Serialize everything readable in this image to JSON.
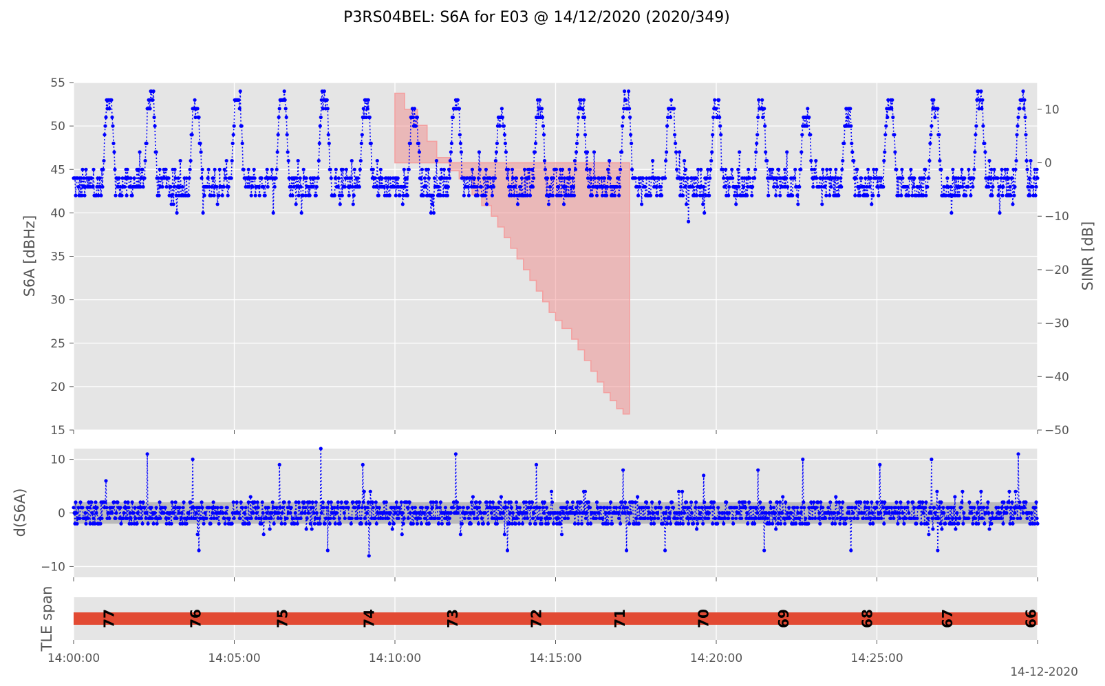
{
  "title": "P3RS04BEL: S6A for E03 @ 14/12/2020 (2020/349)",
  "date_label": "14-12-2020",
  "colors": {
    "signal": "#0000ff",
    "sinr_fill": "#f08080",
    "sinr_edge": "#f4a0a0",
    "tle_bar": "#e24a33",
    "band": "#a8a8a8"
  },
  "chart_data": [
    {
      "type": "scatter",
      "panel": "top",
      "ylabel": "S6A [dBHz]",
      "y2label": "SINR [dB]",
      "ylim": [
        15,
        55
      ],
      "y2lim": [
        -50,
        15
      ],
      "yticks": [
        "15",
        "20",
        "25",
        "30",
        "35",
        "40",
        "45",
        "50",
        "55"
      ],
      "y2ticks": [
        "10",
        "0",
        "−10",
        "−20",
        "−30",
        "−40",
        "−50"
      ],
      "xlim_minutes": [
        0,
        30
      ],
      "series": [
        {
          "kind": "s6a",
          "peak_minutes": [
            1.1,
            2.4,
            3.8,
            5.1,
            6.5,
            7.8,
            9.1,
            10.6,
            11.9,
            13.3,
            14.5,
            15.8,
            17.2,
            18.6,
            20.0,
            21.4,
            22.8,
            24.1,
            25.4,
            26.8,
            28.2,
            29.5
          ],
          "peak_values": [
            54,
            54,
            53,
            54,
            54,
            54,
            53,
            52,
            53,
            52,
            53,
            53,
            54,
            53,
            53,
            53,
            52,
            52,
            53,
            53,
            54,
            54
          ],
          "baseline": 43.2,
          "spread": 1.6
        },
        {
          "kind": "sinr",
          "steps": [
            {
              "start": 10.0,
              "end": 10.3,
              "top": 13,
              "bottom": 0
            },
            {
              "start": 10.3,
              "end": 10.7,
              "top": 10,
              "bottom": 0
            },
            {
              "start": 10.7,
              "end": 11.0,
              "top": 7,
              "bottom": 0
            },
            {
              "start": 11.0,
              "end": 11.3,
              "top": 4,
              "bottom": 0
            },
            {
              "start": 11.3,
              "end": 11.7,
              "top": 1,
              "bottom": 0
            },
            {
              "start": 11.7,
              "end": 12.0,
              "top": 0,
              "bottom": -1.5
            },
            {
              "start": 12.0,
              "end": 12.4,
              "top": 0,
              "bottom": -3
            },
            {
              "start": 12.4,
              "end": 12.7,
              "top": 0,
              "bottom": -6
            },
            {
              "start": 12.7,
              "end": 13.0,
              "top": 0,
              "bottom": -8
            },
            {
              "start": 13.0,
              "end": 13.2,
              "top": 0,
              "bottom": -10
            },
            {
              "start": 13.2,
              "end": 13.4,
              "top": 0,
              "bottom": -12
            },
            {
              "start": 13.4,
              "end": 13.6,
              "top": 0,
              "bottom": -14
            },
            {
              "start": 13.6,
              "end": 13.8,
              "top": 0,
              "bottom": -16
            },
            {
              "start": 13.8,
              "end": 14.0,
              "top": 0,
              "bottom": -18
            },
            {
              "start": 14.0,
              "end": 14.2,
              "top": 0,
              "bottom": -20
            },
            {
              "start": 14.2,
              "end": 14.4,
              "top": 0,
              "bottom": -22
            },
            {
              "start": 14.4,
              "end": 14.6,
              "top": 0,
              "bottom": -24
            },
            {
              "start": 14.6,
              "end": 14.8,
              "top": 0,
              "bottom": -26
            },
            {
              "start": 14.8,
              "end": 15.0,
              "top": 0,
              "bottom": -28
            },
            {
              "start": 15.0,
              "end": 15.2,
              "top": 0,
              "bottom": -29.5
            },
            {
              "start": 15.2,
              "end": 15.5,
              "top": 0,
              "bottom": -31
            },
            {
              "start": 15.5,
              "end": 15.7,
              "top": 0,
              "bottom": -33
            },
            {
              "start": 15.7,
              "end": 15.9,
              "top": 0,
              "bottom": -35
            },
            {
              "start": 15.9,
              "end": 16.1,
              "top": 0,
              "bottom": -37
            },
            {
              "start": 16.1,
              "end": 16.3,
              "top": 0,
              "bottom": -39
            },
            {
              "start": 16.3,
              "end": 16.5,
              "top": 0,
              "bottom": -41
            },
            {
              "start": 16.5,
              "end": 16.7,
              "top": 0,
              "bottom": -43
            },
            {
              "start": 16.7,
              "end": 16.9,
              "top": 0,
              "bottom": -44.5
            },
            {
              "start": 16.9,
              "end": 17.1,
              "top": 0,
              "bottom": -46
            },
            {
              "start": 17.1,
              "end": 17.3,
              "top": 0,
              "bottom": -47
            }
          ]
        }
      ]
    },
    {
      "type": "scatter",
      "panel": "middle",
      "ylabel": "d(S6A)",
      "ylim": [
        -12,
        12
      ],
      "yticks": [
        "−10",
        "0",
        "10"
      ],
      "band": [
        -2,
        2
      ],
      "spikes": [
        {
          "minute": 1.0,
          "value": 6
        },
        {
          "minute": 2.3,
          "value": 11
        },
        {
          "minute": 3.7,
          "value": 10
        },
        {
          "minute": 6.4,
          "value": 9
        },
        {
          "minute": 7.7,
          "value": 12
        },
        {
          "minute": 9.0,
          "value": 9
        },
        {
          "minute": 11.9,
          "value": 11
        },
        {
          "minute": 14.4,
          "value": 9
        },
        {
          "minute": 17.1,
          "value": 8
        },
        {
          "minute": 19.6,
          "value": 7
        },
        {
          "minute": 21.3,
          "value": 8
        },
        {
          "minute": 22.7,
          "value": 10
        },
        {
          "minute": 25.1,
          "value": 9
        },
        {
          "minute": 26.7,
          "value": 10
        },
        {
          "minute": 29.4,
          "value": 11
        },
        {
          "minute": 9.2,
          "value": -8
        },
        {
          "minute": 7.9,
          "value": -7
        },
        {
          "minute": 3.9,
          "value": -7
        },
        {
          "minute": 13.5,
          "value": -7
        },
        {
          "minute": 18.4,
          "value": -7
        },
        {
          "minute": 21.5,
          "value": -7
        },
        {
          "minute": 24.2,
          "value": -7
        },
        {
          "minute": 26.9,
          "value": -7
        },
        {
          "minute": 17.2,
          "value": -7
        }
      ]
    },
    {
      "type": "bar",
      "panel": "bottom",
      "ylabel": "TLE span",
      "labels": [
        {
          "minute": 1.1,
          "text": "77"
        },
        {
          "minute": 3.8,
          "text": "76"
        },
        {
          "minute": 6.5,
          "text": "75"
        },
        {
          "minute": 9.2,
          "text": "74"
        },
        {
          "minute": 11.8,
          "text": "73"
        },
        {
          "minute": 14.4,
          "text": "72"
        },
        {
          "minute": 17.0,
          "text": "71"
        },
        {
          "minute": 19.6,
          "text": "70"
        },
        {
          "minute": 22.1,
          "text": "69"
        },
        {
          "minute": 24.7,
          "text": "68"
        },
        {
          "minute": 27.2,
          "text": "67"
        },
        {
          "minute": 29.8,
          "text": "66"
        }
      ]
    }
  ],
  "x_axis": {
    "ticks_minutes": [
      0,
      5,
      10,
      15,
      20,
      25,
      30
    ],
    "tick_labels": [
      "14:00:00",
      "14:05:00",
      "14:10:00",
      "14:15:00",
      "14:20:00",
      "14:25:00",
      ""
    ]
  }
}
